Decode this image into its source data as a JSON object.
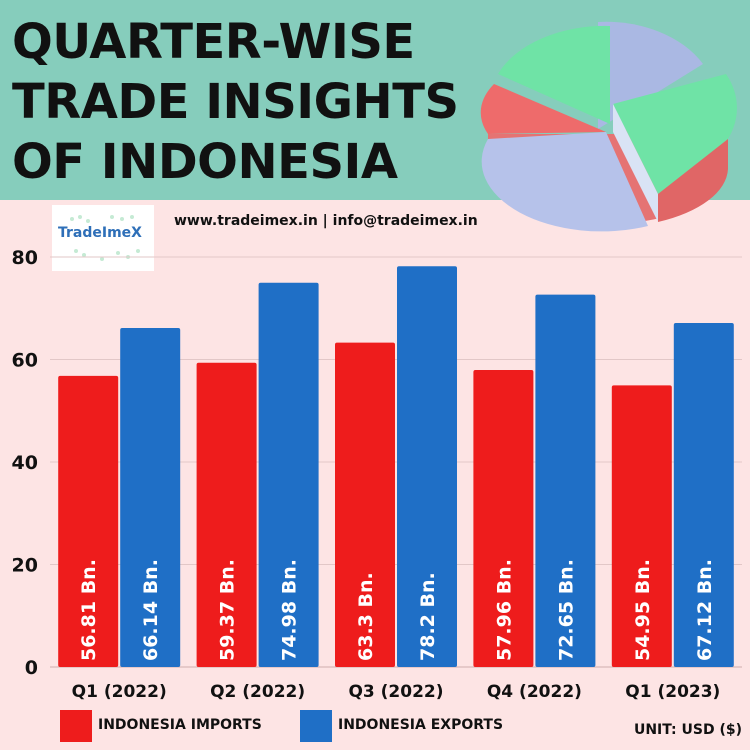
{
  "header": {
    "title_lines": [
      "QUARTER-WISE",
      "TRADE INSIGHTS",
      "OF INDONESIA"
    ]
  },
  "logo": {
    "text": "TradeImeX"
  },
  "contact": {
    "text": "www.tradeimex.in | info@tradeimex.in"
  },
  "colors": {
    "imports": "#ee1c1c",
    "exports": "#1f6fc6",
    "header_bg": "#86cdbc",
    "plot_bg": "#fde4e4"
  },
  "chart_data": {
    "type": "bar",
    "categories": [
      "Q1 (2022)",
      "Q2 (2022)",
      "Q3 (2022)",
      "Q4 (2022)",
      "Q1 (2023)"
    ],
    "series": [
      {
        "name": "INDONESIA IMPORTS",
        "values": [
          56.81,
          59.37,
          63.3,
          57.96,
          54.95
        ],
        "labels": [
          "56.81 Bn.",
          "59.37 Bn.",
          "63.3 Bn.",
          "57.96 Bn.",
          "54.95 Bn."
        ],
        "color": "#ee1c1c"
      },
      {
        "name": "INDONESIA EXPORTS",
        "values": [
          66.14,
          74.98,
          78.2,
          72.65,
          67.12
        ],
        "labels": [
          "66.14 Bn.",
          "74.98 Bn.",
          "78.2 Bn.",
          "72.65 Bn.",
          "67.12 Bn."
        ],
        "color": "#1f6fc6"
      }
    ],
    "yticks": [
      0,
      20,
      40,
      60,
      80
    ],
    "ylim": [
      0,
      80
    ],
    "grid": true,
    "legend_position": "bottom",
    "unit": "UNIT: USD ($)"
  }
}
